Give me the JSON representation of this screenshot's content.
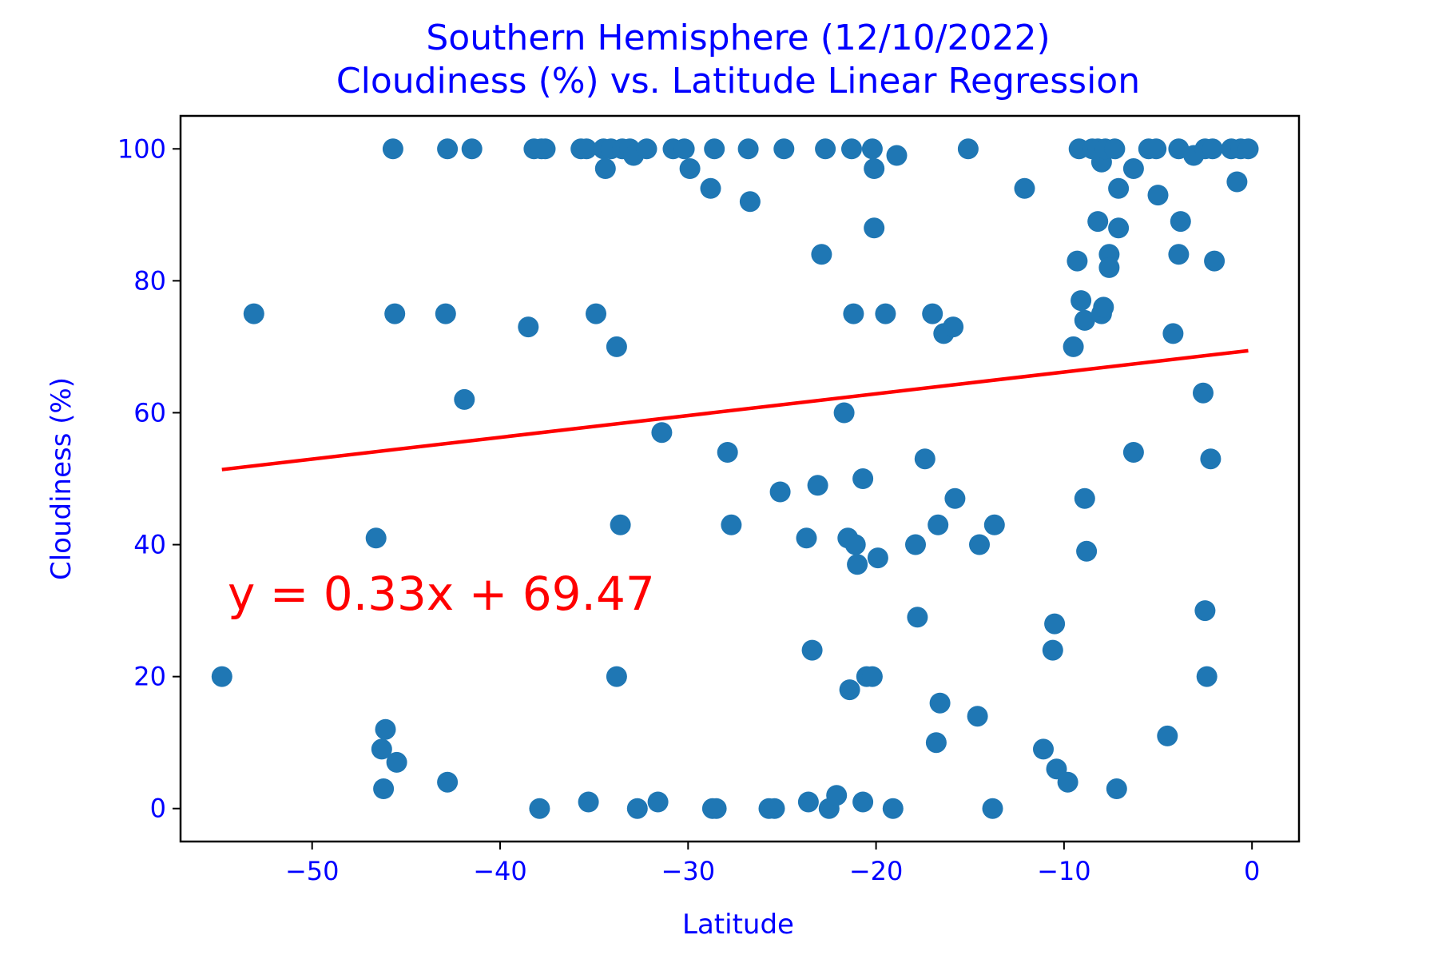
{
  "chart_data": {
    "type": "scatter",
    "title_lines": [
      "Southern Hemisphere (12/10/2022)",
      "Cloudiness (%) vs. Latitude Linear Regression"
    ],
    "xlabel": "Latitude",
    "ylabel": "Cloudiness (%)",
    "xlim": [
      -57.0,
      2.5
    ],
    "ylim": [
      -5,
      105
    ],
    "xticks": [
      -50,
      -40,
      -30,
      -20,
      -10,
      0
    ],
    "xtick_labels": [
      "−50",
      "−40",
      "−30",
      "−20",
      "−10",
      "0"
    ],
    "yticks": [
      0,
      20,
      40,
      60,
      80,
      100
    ],
    "ytick_labels": [
      "0",
      "20",
      "40",
      "60",
      "80",
      "100"
    ],
    "grid": false,
    "colors": {
      "points": "#1f77b4",
      "regression": "#ff0000",
      "text": "#0000ff",
      "equation": "#ff0000"
    },
    "regression": {
      "slope": 0.33,
      "intercept": 69.47,
      "x_range": [
        -54.8,
        -0.2
      ],
      "equation": "y = 0.33x + 69.47"
    },
    "points": [
      [
        -54.8,
        20
      ],
      [
        -53.1,
        75
      ],
      [
        -46.6,
        41
      ],
      [
        -46.3,
        9
      ],
      [
        -46.1,
        12
      ],
      [
        -46.2,
        3
      ],
      [
        -45.7,
        100
      ],
      [
        -45.6,
        75
      ],
      [
        -45.5,
        7
      ],
      [
        -42.9,
        75
      ],
      [
        -42.8,
        100
      ],
      [
        -42.8,
        4
      ],
      [
        -41.9,
        62
      ],
      [
        -41.5,
        100
      ],
      [
        -38.5,
        73
      ],
      [
        -38.2,
        100
      ],
      [
        -37.9,
        0
      ],
      [
        -37.6,
        100
      ],
      [
        -37.8,
        100
      ],
      [
        -35.7,
        100
      ],
      [
        -35.4,
        100
      ],
      [
        -35.3,
        1
      ],
      [
        -34.9,
        75
      ],
      [
        -34.5,
        100
      ],
      [
        -34.4,
        97
      ],
      [
        -34.1,
        100
      ],
      [
        -33.8,
        70
      ],
      [
        -33.8,
        20
      ],
      [
        -33.6,
        43
      ],
      [
        -33.5,
        100
      ],
      [
        -33.1,
        100
      ],
      [
        -32.9,
        99
      ],
      [
        -32.7,
        0
      ],
      [
        -32.2,
        100
      ],
      [
        -31.6,
        1
      ],
      [
        -31.4,
        57
      ],
      [
        -30.8,
        100
      ],
      [
        -30.2,
        100
      ],
      [
        -29.9,
        97
      ],
      [
        -28.8,
        94
      ],
      [
        -28.7,
        0
      ],
      [
        -28.5,
        0
      ],
      [
        -28.6,
        100
      ],
      [
        -27.9,
        54
      ],
      [
        -27.7,
        43
      ],
      [
        -26.8,
        100
      ],
      [
        -26.7,
        92
      ],
      [
        -25.7,
        0
      ],
      [
        -25.4,
        0
      ],
      [
        -25.1,
        48
      ],
      [
        -24.9,
        100
      ],
      [
        -23.7,
        41
      ],
      [
        -23.6,
        1
      ],
      [
        -23.4,
        24
      ],
      [
        -23.1,
        49
      ],
      [
        -22.9,
        84
      ],
      [
        -22.7,
        100
      ],
      [
        -22.5,
        0
      ],
      [
        -22.1,
        2
      ],
      [
        -21.7,
        60
      ],
      [
        -21.5,
        41
      ],
      [
        -21.4,
        18
      ],
      [
        -21.3,
        100
      ],
      [
        -21.2,
        75
      ],
      [
        -21.1,
        40
      ],
      [
        -21.0,
        37
      ],
      [
        -20.7,
        50
      ],
      [
        -20.7,
        1
      ],
      [
        -20.5,
        20
      ],
      [
        -20.2,
        20
      ],
      [
        -20.2,
        100
      ],
      [
        -20.1,
        88
      ],
      [
        -20.1,
        97
      ],
      [
        -19.9,
        38
      ],
      [
        -19.5,
        75
      ],
      [
        -19.1,
        0
      ],
      [
        -18.9,
        99
      ],
      [
        -17.9,
        40
      ],
      [
        -17.8,
        29
      ],
      [
        -17.4,
        53
      ],
      [
        -17.0,
        75
      ],
      [
        -16.8,
        10
      ],
      [
        -16.7,
        43
      ],
      [
        -16.6,
        16
      ],
      [
        -16.4,
        72
      ],
      [
        -15.9,
        73
      ],
      [
        -15.8,
        47
      ],
      [
        -15.1,
        100
      ],
      [
        -14.6,
        14
      ],
      [
        -14.5,
        40
      ],
      [
        -13.8,
        0
      ],
      [
        -13.7,
        43
      ],
      [
        -12.1,
        94
      ],
      [
        -11.1,
        9
      ],
      [
        -10.6,
        24
      ],
      [
        -10.5,
        28
      ],
      [
        -10.4,
        6
      ],
      [
        -9.8,
        4
      ],
      [
        -9.5,
        70
      ],
      [
        -9.3,
        83
      ],
      [
        -9.2,
        100
      ],
      [
        -9.1,
        77
      ],
      [
        -8.9,
        47
      ],
      [
        -8.9,
        74
      ],
      [
        -8.8,
        39
      ],
      [
        -8.5,
        100
      ],
      [
        -8.2,
        89
      ],
      [
        -8.2,
        100
      ],
      [
        -8.0,
        98
      ],
      [
        -8.0,
        75
      ],
      [
        -7.9,
        76
      ],
      [
        -7.8,
        100
      ],
      [
        -7.6,
        84
      ],
      [
        -7.6,
        82
      ],
      [
        -7.3,
        100
      ],
      [
        -7.2,
        3
      ],
      [
        -7.1,
        94
      ],
      [
        -7.1,
        88
      ],
      [
        -6.3,
        97
      ],
      [
        -6.3,
        54
      ],
      [
        -5.5,
        100
      ],
      [
        -5.1,
        100
      ],
      [
        -5.0,
        93
      ],
      [
        -4.5,
        11
      ],
      [
        -4.2,
        72
      ],
      [
        -3.9,
        100
      ],
      [
        -3.9,
        84
      ],
      [
        -3.8,
        89
      ],
      [
        -3.1,
        99
      ],
      [
        -2.6,
        63
      ],
      [
        -2.5,
        30
      ],
      [
        -2.5,
        100
      ],
      [
        -2.4,
        20
      ],
      [
        -2.2,
        53
      ],
      [
        -2.1,
        100
      ],
      [
        -2.0,
        83
      ],
      [
        -1.1,
        100
      ],
      [
        -0.8,
        95
      ],
      [
        -0.6,
        100
      ],
      [
        -0.2,
        100
      ]
    ]
  }
}
